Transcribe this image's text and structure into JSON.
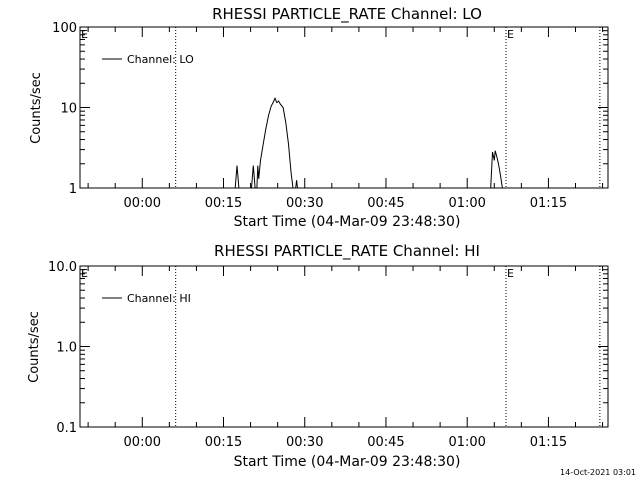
{
  "footer": {
    "timestamp": "14-Oct-2021 03:01"
  },
  "chart_data": [
    {
      "type": "line",
      "title": "RHESSI PARTICLE_RATE Channel: LO",
      "xlabel": "Start Time (04-Mar-09 23:48:30)",
      "ylabel": "Counts/sec",
      "yscale": "log",
      "ylim": [
        1,
        100
      ],
      "xlim": [
        "23:48:30",
        "01:26:00"
      ],
      "xticks": [
        "00:00",
        "00:15",
        "00:30",
        "00:45",
        "01:00",
        "01:15"
      ],
      "yticks": [
        "1",
        "10",
        "100"
      ],
      "legend": {
        "position": "top-left",
        "entries": [
          "Channel: LO"
        ]
      },
      "annotations": [
        {
          "text": "E",
          "time": "23:48:30"
        },
        {
          "text": "E",
          "time": "01:07:10"
        }
      ],
      "vlines": [
        "00:06:10",
        "01:07:10",
        "01:24:30"
      ],
      "series": [
        {
          "name": "Channel: LO",
          "segments": [
            [
              [
                "00:17:10",
                1
              ],
              [
                "00:17:30",
                1.9
              ],
              [
                "00:17:50",
                1
              ]
            ],
            [
              [
                "00:20:10",
                1
              ],
              [
                "00:20:30",
                1.9
              ],
              [
                "00:20:50",
                1
              ]
            ],
            [
              [
                "00:21:10",
                1
              ],
              [
                "00:21:20",
                1.9
              ],
              [
                "00:21:30",
                1.3
              ],
              [
                "00:21:50",
                2.2
              ],
              [
                "00:22:20",
                3.5
              ],
              [
                "00:22:50",
                5.5
              ],
              [
                "00:23:20",
                8
              ],
              [
                "00:23:50",
                10.5
              ],
              [
                "00:24:10",
                11.5
              ],
              [
                "00:24:30",
                13
              ],
              [
                "00:24:50",
                11.5
              ],
              [
                "00:25:10",
                12
              ],
              [
                "00:25:30",
                11
              ],
              [
                "00:26:00",
                10
              ],
              [
                "00:26:30",
                6.5
              ],
              [
                "00:27:00",
                3.5
              ],
              [
                "00:27:30",
                1.5
              ],
              [
                "00:27:50",
                1
              ]
            ],
            [
              [
                "00:28:20",
                1
              ],
              [
                "00:28:30",
                1.25
              ],
              [
                "00:28:40",
                1
              ]
            ],
            [
              [
                "01:04:20",
                1
              ],
              [
                "01:04:40",
                2.8
              ],
              [
                "01:05:00",
                2.2
              ],
              [
                "01:05:10",
                2.9
              ],
              [
                "01:05:30",
                2.4
              ],
              [
                "01:05:50",
                1.9
              ],
              [
                "01:06:10",
                1.4
              ],
              [
                "01:06:30",
                1
              ]
            ]
          ]
        }
      ]
    },
    {
      "type": "line",
      "title": "RHESSI PARTICLE_RATE Channel: HI",
      "xlabel": "Start Time (04-Mar-09 23:48:30)",
      "ylabel": "Counts/sec",
      "yscale": "log",
      "ylim": [
        0.1,
        10
      ],
      "xlim": [
        "23:48:30",
        "01:26:00"
      ],
      "xticks": [
        "00:00",
        "00:15",
        "00:30",
        "00:45",
        "01:00",
        "01:15"
      ],
      "yticks": [
        "0.1",
        "1.0",
        "10.0"
      ],
      "legend": {
        "position": "top-left",
        "entries": [
          "Channel: HI"
        ]
      },
      "annotations": [
        {
          "text": "E",
          "time": "23:48:30"
        },
        {
          "text": "E",
          "time": "01:07:10"
        }
      ],
      "vlines": [
        "00:06:10",
        "01:07:10",
        "01:24:30"
      ],
      "series": [
        {
          "name": "Channel: HI",
          "segments": []
        }
      ]
    }
  ]
}
